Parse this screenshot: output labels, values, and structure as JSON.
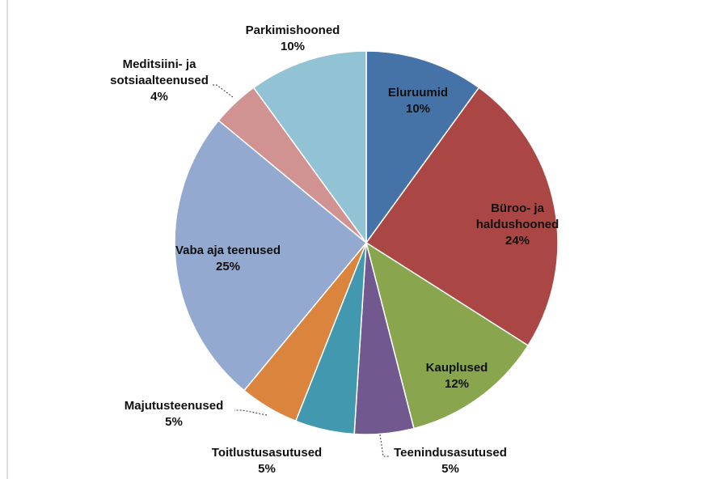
{
  "chart_data": {
    "type": "pie",
    "categories": [
      "Eluruumid",
      "Büroo- ja haldushooned",
      "Kauplused",
      "Teenindusasutused",
      "Toitlustusasutused",
      "Majutusteenused",
      "Vaba aja teenused",
      "Meditsiini- ja sotsiaalteenused",
      "Parkimishooned"
    ],
    "values": [
      10,
      24,
      12,
      5,
      5,
      5,
      25,
      4,
      10
    ],
    "value_labels": [
      "10%",
      "24%",
      "12%",
      "5%",
      "5%",
      "5%",
      "25%",
      "4%",
      "10%"
    ],
    "colors": [
      "#4572a7",
      "#aa4643",
      "#89a54e",
      "#71588f",
      "#4198af",
      "#db843d",
      "#93a9cf",
      "#d19392",
      "#92c3d4"
    ]
  }
}
